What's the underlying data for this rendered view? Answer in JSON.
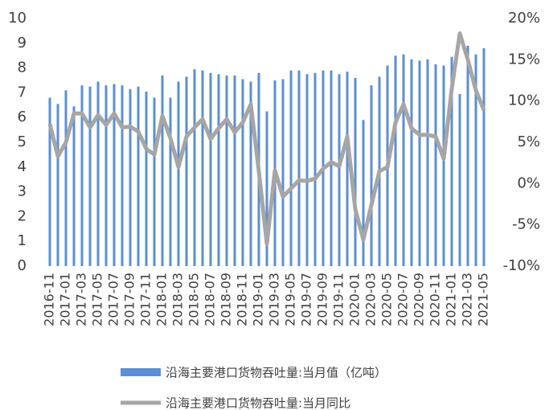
{
  "chart_data": {
    "type": "bar",
    "categories": [
      "2016-11",
      null,
      "2017-01",
      null,
      "2017-03",
      null,
      "2017-05",
      null,
      "2017-07",
      null,
      "2017-09",
      null,
      "2017-11",
      null,
      "2018-01",
      null,
      "2018-03",
      null,
      "2018-05",
      null,
      "2018-07",
      null,
      "2018-09",
      null,
      "2018-11",
      null,
      "2019-01",
      null,
      "2019-03",
      null,
      "2019-05",
      null,
      "2019-07",
      null,
      "2019-09",
      null,
      "2019-11",
      null,
      "2020-01",
      null,
      "2020-03",
      null,
      "2020-05",
      null,
      "2020-07",
      null,
      "2020-09",
      null,
      "2020-11",
      null,
      "2021-01",
      null,
      "2021-03",
      null,
      "2021-05"
    ],
    "series": [
      {
        "name": "沿海主要港口货物吞吐量:当月值（亿吨）",
        "type": "bar",
        "color": "#5b8fd4",
        "values": [
          6.8,
          6.55,
          7.1,
          6.45,
          7.3,
          7.25,
          7.45,
          7.3,
          7.35,
          7.3,
          7.15,
          7.25,
          7.05,
          6.8,
          7.7,
          6.8,
          7.45,
          7.65,
          7.95,
          7.9,
          7.8,
          7.75,
          7.7,
          7.7,
          7.55,
          7.45,
          7.8,
          6.25,
          7.5,
          7.55,
          7.9,
          7.9,
          7.75,
          7.8,
          7.9,
          7.9,
          7.75,
          7.85,
          7.6,
          5.9,
          7.3,
          7.65,
          8.1,
          8.5,
          8.55,
          8.35,
          8.3,
          8.35,
          8.15,
          8.1,
          8.45,
          6.95,
          8.9,
          8.55,
          8.8
        ]
      },
      {
        "name": "沿海主要港口货物吞吐量:当月同比",
        "type": "line",
        "axis": "y2",
        "color": "#a6a6a6",
        "values": [
          7.2,
          3.3,
          5.0,
          8.5,
          8.5,
          6.8,
          8.3,
          7.1,
          8.5,
          6.8,
          6.9,
          6.3,
          4.2,
          3.5,
          8.2,
          5.5,
          2.0,
          5.7,
          6.8,
          7.8,
          5.4,
          6.7,
          7.8,
          6.2,
          7.4,
          9.6,
          1.5,
          -7.3,
          1.6,
          -1.6,
          -0.6,
          0.4,
          0.3,
          0.6,
          1.8,
          2.6,
          2.1,
          5.7,
          -3.1,
          -6.8,
          -2.6,
          1.5,
          2.0,
          7.4,
          9.6,
          6.7,
          5.9,
          5.9,
          5.7,
          3.0,
          11.5,
          18.2,
          15.0,
          11.3,
          8.9
        ]
      }
    ],
    "ylim": [
      0,
      10
    ],
    "yticks": [
      0,
      1,
      2,
      3,
      4,
      5,
      6,
      7,
      8,
      9,
      10
    ],
    "y2lim": [
      -10,
      20
    ],
    "y2ticks": [
      {
        "value": -10,
        "label": "-10%"
      },
      {
        "value": -5,
        "label": "-5%"
      },
      {
        "value": 0,
        "label": "0%"
      },
      {
        "value": 5,
        "label": "5%"
      },
      {
        "value": 10,
        "label": "10%"
      },
      {
        "value": 15,
        "label": "15%"
      },
      {
        "value": 20,
        "label": "20%"
      }
    ],
    "grid": false,
    "legend": "bottom"
  }
}
